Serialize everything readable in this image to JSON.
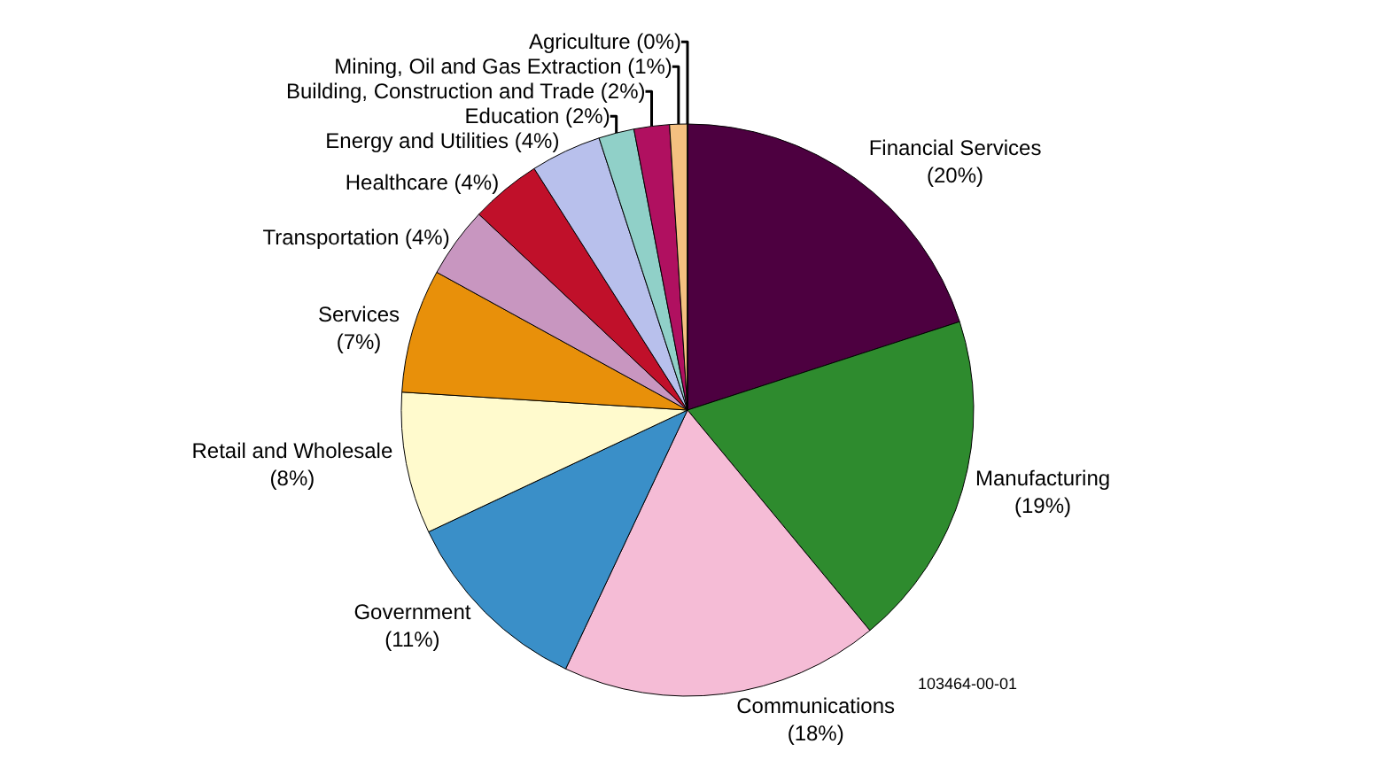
{
  "chart_data": {
    "type": "pie",
    "categories": [
      "Financial Services",
      "Manufacturing",
      "Communications",
      "Government",
      "Retail and Wholesale",
      "Services",
      "Transportation",
      "Healthcare",
      "Energy and Utilities",
      "Education",
      "Building, Construction and Trade",
      "Mining, Oil and Gas Extraction",
      "Agriculture"
    ],
    "values": [
      20,
      19,
      18,
      11,
      8,
      7,
      4,
      4,
      4,
      2,
      2,
      1,
      0
    ],
    "value_labels": [
      "(20%)",
      "(19%)",
      "(18%)",
      "(11%)",
      "(8%)",
      "(7%)",
      "(4%)",
      "(4%)",
      "(4%)",
      "(2%)",
      "(2%)",
      "(1%)",
      "(0%)"
    ],
    "colors": [
      "#4d0040",
      "#2e8b2e",
      "#f5bcd6",
      "#3a8fc8",
      "#fffacd",
      "#e8900a",
      "#c896c0",
      "#c0102a",
      "#b8c0ec",
      "#90d0c8",
      "#b01060",
      "#f4c080",
      "#6080c0"
    ],
    "legend": false,
    "annotations": [
      "103464-00-01"
    ]
  }
}
